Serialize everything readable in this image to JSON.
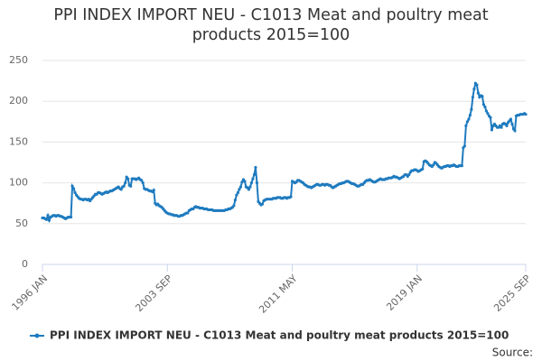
{
  "chart_data": {
    "type": "line",
    "title": "PPI INDEX IMPORT NEU - C1013 Meat and poultry meat products 2015=100",
    "source": "Source:",
    "categories": [
      "1996 JAN",
      null,
      null,
      null,
      null,
      null,
      null,
      null,
      null,
      null,
      null,
      null,
      null,
      null,
      null,
      null,
      null,
      null,
      null,
      null,
      null,
      null,
      null,
      null,
      null,
      null,
      null,
      null,
      null,
      null,
      null,
      null,
      null,
      null,
      null,
      null,
      null,
      null,
      null,
      null,
      null,
      null,
      null,
      null,
      null,
      null,
      null,
      null,
      null,
      null,
      null,
      null,
      null,
      null,
      null,
      null,
      null,
      null,
      null,
      null,
      null,
      null,
      null,
      null,
      null,
      null,
      null,
      null,
      null,
      null,
      null,
      null,
      null,
      null,
      null,
      null,
      null,
      null,
      null,
      null,
      null,
      null,
      null,
      null,
      null,
      null,
      null,
      null,
      null,
      null,
      null,
      null,
      "2003 SEP",
      null,
      null,
      null,
      null,
      null,
      null,
      null,
      null,
      null,
      null,
      null,
      null,
      null,
      null,
      null,
      null,
      null,
      null,
      null,
      null,
      null,
      null,
      null,
      null,
      null,
      null,
      null,
      null,
      null,
      null,
      null,
      null,
      null,
      null,
      null,
      null,
      null,
      null,
      null,
      null,
      null,
      null,
      null,
      null,
      null,
      null,
      null,
      null,
      null,
      null,
      null,
      null,
      null,
      null,
      null,
      null,
      null,
      null,
      null,
      null,
      null,
      null,
      null,
      null,
      null,
      null,
      null,
      null,
      null,
      null,
      null,
      null,
      null,
      null,
      null,
      null,
      null,
      null,
      null,
      null,
      null,
      null,
      null,
      null,
      null,
      null,
      null,
      null,
      null,
      null,
      null,
      "2011 MAY",
      null,
      null,
      null,
      null,
      null,
      null,
      null,
      null,
      null,
      null,
      null,
      null,
      null,
      null,
      null,
      null,
      null,
      null,
      null,
      null,
      null,
      null,
      null,
      null,
      null,
      null,
      null,
      null,
      null,
      null,
      null,
      null,
      null,
      null,
      null,
      null,
      null,
      null,
      null,
      null,
      null,
      null,
      null,
      null,
      null,
      null,
      null,
      null,
      null,
      null,
      null,
      null,
      null,
      null,
      null,
      null,
      null,
      null,
      null,
      null,
      null,
      null,
      null,
      null,
      null,
      null,
      null,
      null,
      null,
      null,
      null,
      null,
      null,
      null,
      null,
      null,
      null,
      null,
      null,
      null,
      null,
      null,
      null,
      null,
      null,
      null,
      null,
      null,
      null,
      null,
      null,
      "2019 JAN",
      null,
      null,
      null,
      null,
      null,
      null,
      null,
      null,
      null,
      null,
      null,
      null,
      null,
      null,
      null,
      null,
      null,
      null,
      null,
      null,
      null,
      null,
      null,
      null,
      null,
      null,
      null,
      null,
      null,
      null,
      null,
      null,
      null,
      null,
      null,
      null,
      null,
      null,
      null,
      null,
      null,
      null,
      null,
      null,
      null,
      null,
      null,
      null,
      null,
      null,
      null,
      null,
      null,
      null,
      null,
      null,
      null,
      null,
      null,
      null,
      null,
      null,
      null,
      null,
      null,
      null,
      null,
      null,
      null,
      null,
      null,
      null,
      null,
      null,
      null,
      null,
      null,
      null,
      null,
      "2025 SEP"
    ],
    "series": [
      {
        "name": "PPI INDEX IMPORT NEU - C1013 Meat and poultry meat products 2015=100",
        "color": "#1f7bbf",
        "values": [
          57,
          57,
          56,
          55,
          60,
          54,
          58,
          59,
          60,
          60,
          59,
          60,
          60,
          59,
          59,
          58,
          57,
          56,
          57,
          58,
          58,
          58,
          96,
          93,
          88,
          85,
          83,
          81,
          80,
          80,
          79,
          80,
          80,
          79,
          80,
          78,
          80,
          82,
          84,
          86,
          86,
          88,
          88,
          87,
          86,
          87,
          88,
          89,
          88,
          89,
          90,
          90,
          91,
          92,
          93,
          94,
          95,
          93,
          92,
          95,
          96,
          100,
          107,
          105,
          97,
          96,
          105,
          105,
          105,
          104,
          105,
          106,
          104,
          103,
          100,
          93,
          92,
          92,
          91,
          90,
          90,
          89,
          91,
          75,
          73,
          74,
          72,
          71,
          70,
          68,
          66,
          64,
          63,
          62,
          62,
          61,
          61,
          60,
          60,
          60,
          59,
          59,
          60,
          60,
          61,
          62,
          63,
          63,
          66,
          67,
          68,
          68,
          70,
          71,
          70,
          70,
          69,
          69,
          69,
          68,
          68,
          68,
          67,
          67,
          67,
          67,
          66,
          66,
          66,
          66,
          66,
          66,
          66,
          66,
          66,
          67,
          67,
          68,
          68,
          69,
          70,
          72,
          79,
          85,
          88,
          92,
          95,
          101,
          104,
          102,
          95,
          94,
          92,
          95,
          100,
          105,
          110,
          119,
          100,
          77,
          75,
          73,
          74,
          78,
          79,
          80,
          80,
          80,
          80,
          80,
          81,
          81,
          81,
          82,
          82,
          82,
          81,
          81,
          82,
          82,
          81,
          82,
          82,
          83,
          102,
          101,
          100,
          101,
          103,
          103,
          102,
          101,
          100,
          98,
          97,
          96,
          95,
          95,
          94,
          95,
          96,
          97,
          98,
          98,
          97,
          97,
          98,
          98,
          97,
          98,
          98,
          97,
          97,
          95,
          94,
          95,
          96,
          97,
          98,
          99,
          99,
          100,
          100,
          101,
          102,
          102,
          101,
          100,
          99,
          99,
          98,
          97,
          96,
          96,
          97,
          98,
          98,
          100,
          102,
          103,
          103,
          104,
          103,
          102,
          101,
          101,
          102,
          103,
          104,
          105,
          104,
          104,
          104,
          105,
          105,
          106,
          106,
          106,
          107,
          108,
          107,
          107,
          106,
          105,
          106,
          107,
          108,
          110,
          110,
          108,
          110,
          113,
          115,
          115,
          116,
          116,
          115,
          114,
          115,
          116,
          117,
          126,
          127,
          126,
          124,
          122,
          121,
          120,
          122,
          125,
          124,
          122,
          120,
          119,
          118,
          119,
          120,
          120,
          121,
          121,
          120,
          121,
          121,
          122,
          121,
          120,
          120,
          121,
          121,
          121,
          143,
          145,
          170,
          175,
          178,
          183,
          190,
          205,
          215,
          222,
          220,
          210,
          205,
          207,
          206,
          196,
          193,
          188,
          185,
          182,
          180,
          165,
          170,
          172,
          170,
          168,
          168,
          170,
          168,
          172,
          173,
          172,
          170,
          174,
          176,
          178,
          172,
          166,
          164,
          182,
          183,
          183,
          184,
          184,
          184,
          185,
          184
        ]
      }
    ],
    "ylim": [
      0,
      250
    ],
    "yticks": [
      0,
      50,
      100,
      150,
      200,
      250
    ],
    "grid": true,
    "legend": "bottom"
  }
}
